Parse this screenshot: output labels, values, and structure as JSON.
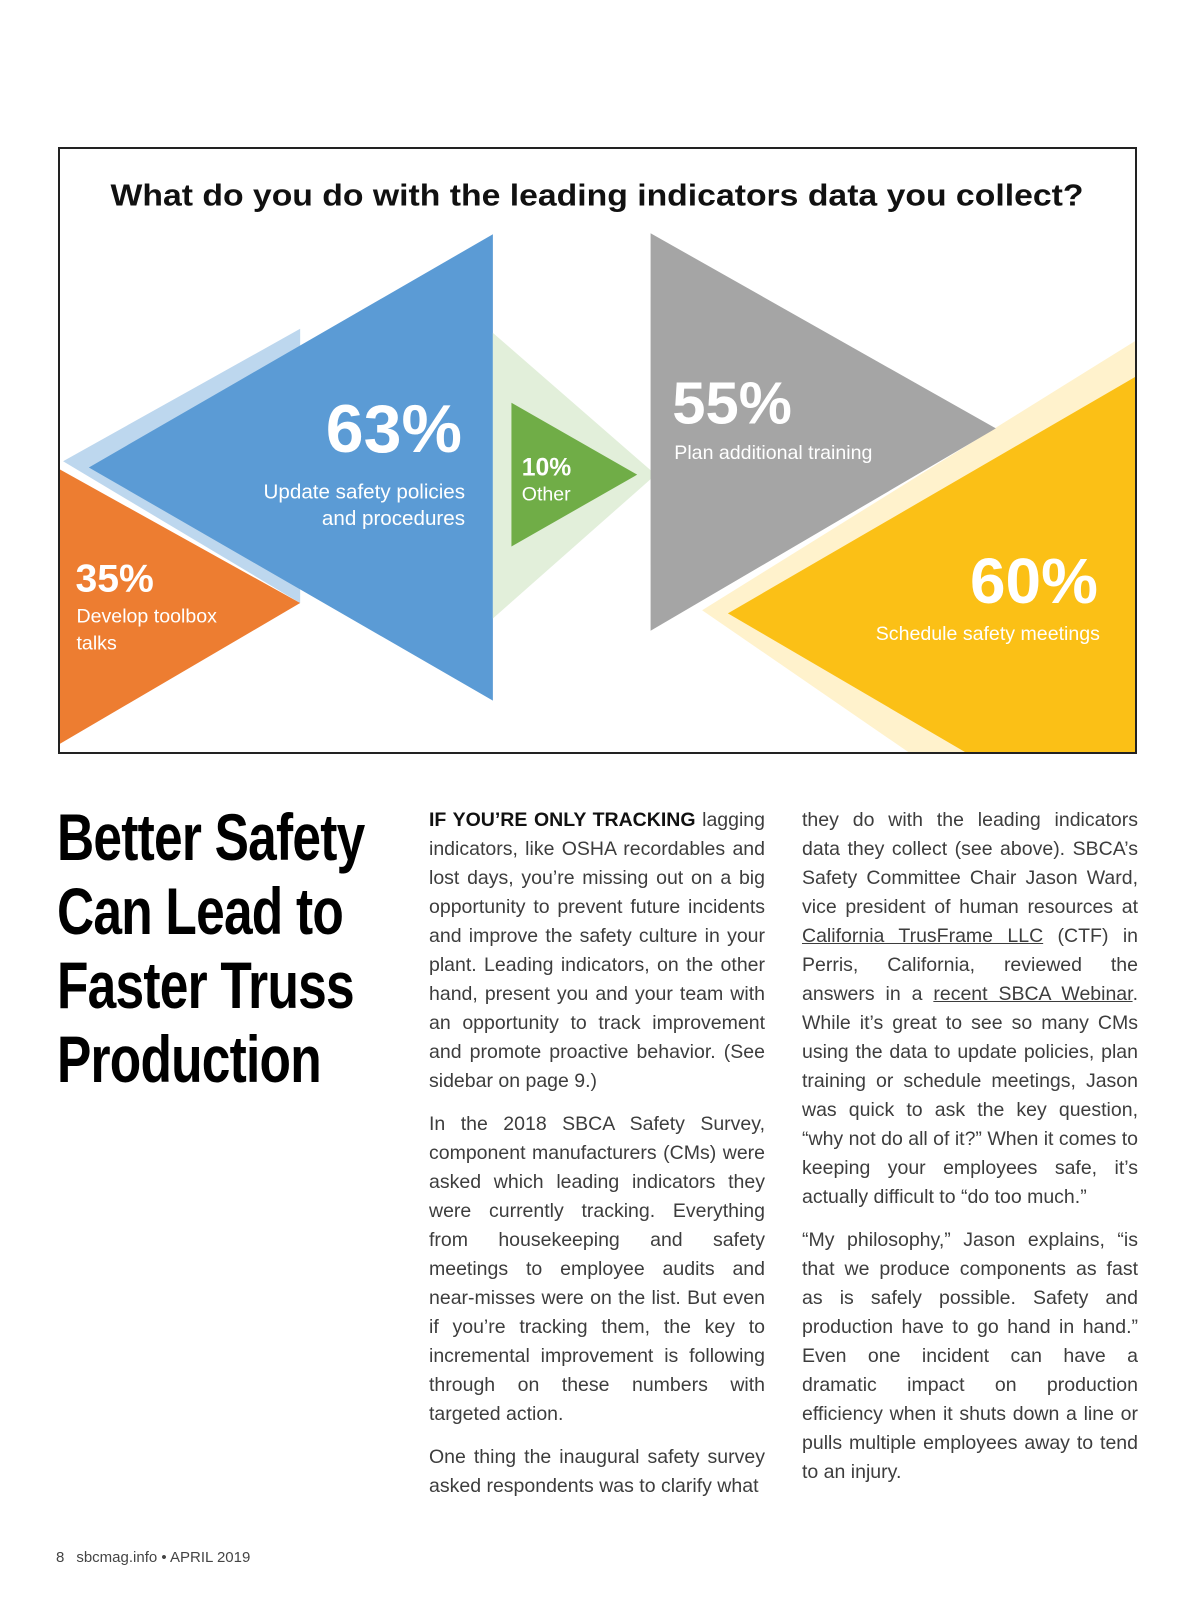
{
  "infographic": {
    "title": "What do you do with the leading indicators data you collect?",
    "items": [
      {
        "percent": "63%",
        "label_lines": [
          "Update safety policies",
          "and procedures"
        ],
        "color": "#5b9bd5"
      },
      {
        "percent": "35%",
        "label_lines": [
          "Develop toolbox",
          "talks"
        ],
        "color": "#ed7d31"
      },
      {
        "percent": "10%",
        "label_lines": [
          "Other"
        ],
        "color": "#70ad47"
      },
      {
        "percent": "55%",
        "label_lines": [
          "Plan additional training"
        ],
        "color": "#a5a5a5"
      },
      {
        "percent": "60%",
        "label_lines": [
          "Schedule safety meetings"
        ],
        "color": "#fbc016"
      }
    ]
  },
  "article": {
    "headline_lines": [
      "Better Safety",
      "Can Lead to",
      "Faster Truss",
      "Production"
    ],
    "col2": {
      "p1_lead": "IF YOU’RE ONLY TRACKING",
      "p1_text": " lagging indicators, like OSHA recordables and lost days, you’re missing out on a big opportunity to prevent future incidents and improve the safety culture in your plant. Leading indicators, on the other hand, present you and your team with an opportunity to track improvement and promote proactive behavior. (See sidebar on page 9.)",
      "p2": "In the 2018 SBCA Safety Survey, component manufacturers (CMs) were asked which leading indicators they were currently tracking. Everything from housekeeping and safety meetings to employee audits and near-misses were on the list. But even if you’re tracking them, the key to incremental improvement is following through on these numbers with targeted action.",
      "p3": "One thing the inaugural safety survey asked respondents was to clarify what"
    },
    "col3": {
      "p1_a": "they do with the leading indicators data they collect (see above). SBCA’s Safety Committee Chair Jason Ward, vice president of human resources at ",
      "p1_link1": "California TrusFrame LLC",
      "p1_b": " (CTF) in Perris, California, reviewed the answers in a ",
      "p1_link2": "recent SBCA Webinar",
      "p1_c": ". While it’s great to see so many CMs using the data to update policies, plan training or schedule meetings, Jason was quick to ask the key question, “why not do all of it?” When it comes to keeping your employees safe, it’s actually difficult to “do too much.”",
      "p2": "“My philosophy,” Jason explains, “is that we produce components as fast as is safely possible. Safety and production have to go hand in hand.” Even one incident can have a dramatic impact on production efficiency when it shuts down a line or pulls multiple employees away to tend to an injury."
    }
  },
  "footer": {
    "page_number": "8",
    "publication": "sbcmag.info • APRIL 2019"
  }
}
